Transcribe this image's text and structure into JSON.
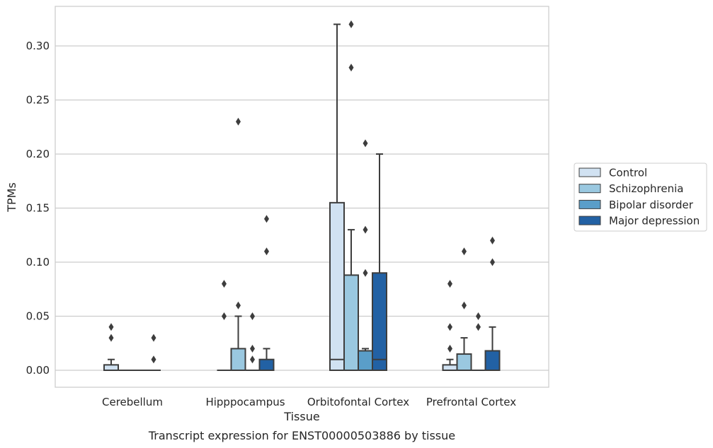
{
  "chart_data": {
    "type": "box",
    "caption": "Transcript expression for ENST00000503886 by tissue",
    "xlabel": "Tissue",
    "ylabel": "TPMs",
    "ylim": [
      -0.016,
      0.337
    ],
    "yticks": [
      0.0,
      0.05,
      0.1,
      0.15,
      0.2,
      0.25,
      0.3
    ],
    "ytick_labels": [
      "0.00",
      "0.05",
      "0.10",
      "0.15",
      "0.20",
      "0.25",
      "0.30"
    ],
    "grid": "horizontal",
    "legend_position": "right",
    "categories": [
      "Cerebellum",
      "Hipppocampus",
      "Orbitofontal Cortex",
      "Prefrontal Cortex"
    ],
    "series": [
      {
        "name": "Control",
        "color": "#d1e2f2",
        "boxes": [
          {
            "q1": 0.0,
            "median": 0.0,
            "q3": 0.005,
            "whisker_low": 0.0,
            "whisker_high": 0.01,
            "outliers": [
              0.03,
              0.04
            ]
          },
          {
            "q1": 0.0,
            "median": 0.0,
            "q3": 0.0,
            "whisker_low": 0.0,
            "whisker_high": 0.0,
            "outliers": [
              0.05,
              0.08
            ]
          },
          {
            "q1": 0.0,
            "median": 0.01,
            "q3": 0.155,
            "whisker_low": 0.0,
            "whisker_high": 0.32,
            "outliers": []
          },
          {
            "q1": 0.0,
            "median": 0.0,
            "q3": 0.005,
            "whisker_low": 0.0,
            "whisker_high": 0.01,
            "outliers": [
              0.02,
              0.04,
              0.08
            ]
          }
        ]
      },
      {
        "name": "Schizophrenia",
        "color": "#9ac8e0",
        "boxes": [
          {
            "q1": 0.0,
            "median": 0.0,
            "q3": 0.0,
            "whisker_low": 0.0,
            "whisker_high": 0.0,
            "outliers": []
          },
          {
            "q1": 0.0,
            "median": 0.0,
            "q3": 0.02,
            "whisker_low": 0.0,
            "whisker_high": 0.05,
            "outliers": [
              0.06,
              0.23
            ]
          },
          {
            "q1": 0.0,
            "median": 0.0,
            "q3": 0.088,
            "whisker_low": 0.0,
            "whisker_high": 0.13,
            "outliers": [
              0.28,
              0.32
            ]
          },
          {
            "q1": 0.0,
            "median": 0.0,
            "q3": 0.015,
            "whisker_low": 0.0,
            "whisker_high": 0.03,
            "outliers": [
              0.06,
              0.11
            ]
          }
        ]
      },
      {
        "name": "Bipolar disorder",
        "color": "#5a9ec9",
        "boxes": [
          {
            "q1": 0.0,
            "median": 0.0,
            "q3": 0.0,
            "whisker_low": 0.0,
            "whisker_high": 0.0,
            "outliers": []
          },
          {
            "q1": 0.0,
            "median": 0.0,
            "q3": 0.0,
            "whisker_low": 0.0,
            "whisker_high": 0.0,
            "outliers": [
              0.01,
              0.02,
              0.05
            ]
          },
          {
            "q1": 0.0,
            "median": 0.0,
            "q3": 0.018,
            "whisker_low": 0.0,
            "whisker_high": 0.02,
            "outliers": [
              0.09,
              0.13,
              0.21
            ]
          },
          {
            "q1": 0.0,
            "median": 0.0,
            "q3": 0.0,
            "whisker_low": 0.0,
            "whisker_high": 0.0,
            "outliers": [
              0.04,
              0.05
            ]
          }
        ]
      },
      {
        "name": "Major depression",
        "color": "#2261a4",
        "boxes": [
          {
            "q1": 0.0,
            "median": 0.0,
            "q3": 0.0,
            "whisker_low": 0.0,
            "whisker_high": 0.0,
            "outliers": [
              0.01,
              0.03
            ]
          },
          {
            "q1": 0.0,
            "median": 0.0,
            "q3": 0.01,
            "whisker_low": 0.0,
            "whisker_high": 0.02,
            "outliers": [
              0.11,
              0.14
            ]
          },
          {
            "q1": 0.0,
            "median": 0.01,
            "q3": 0.09,
            "whisker_low": 0.0,
            "whisker_high": 0.2,
            "outliers": []
          },
          {
            "q1": 0.0,
            "median": 0.0,
            "q3": 0.018,
            "whisker_low": 0.0,
            "whisker_high": 0.04,
            "outliers": [
              0.1,
              0.12
            ]
          }
        ]
      }
    ]
  }
}
